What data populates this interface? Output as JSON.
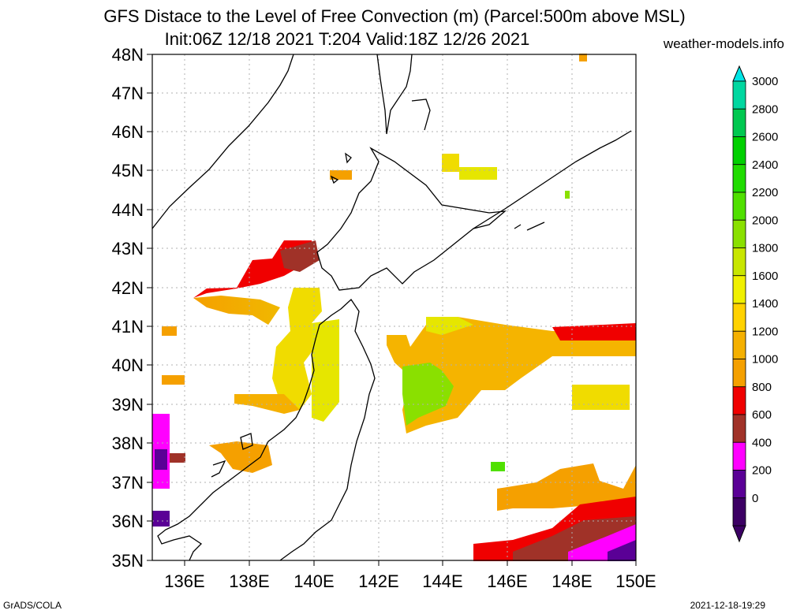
{
  "header": {
    "title_line1": "GFS Distace to the Level of Free Convection (m) (Parcel:500m above MSL)",
    "title_line2": "Init:06Z 12/18 2021 T:204 Valid:18Z 12/26 2021",
    "credit": "weather-models.info"
  },
  "footer": {
    "left": "GrADS/COLA",
    "right": "2021-12-18-19:29"
  },
  "map": {
    "lat_labels": [
      "48N",
      "47N",
      "46N",
      "45N",
      "44N",
      "43N",
      "42N",
      "41N",
      "40N",
      "39N",
      "38N",
      "37N",
      "36N",
      "35N"
    ],
    "lon_labels": [
      "136E",
      "138E",
      "140E",
      "142E",
      "144E",
      "146E",
      "148E",
      "150E"
    ],
    "lat_range": [
      35,
      48
    ],
    "lon_range": [
      135,
      150
    ],
    "grid": "dotted",
    "coastline_color": "#000000"
  },
  "colorbar": {
    "levels": [
      "3000",
      "2800",
      "2600",
      "2400",
      "2200",
      "2000",
      "1800",
      "1600",
      "1400",
      "1200",
      "1000",
      "800",
      "600",
      "400",
      "200",
      "0"
    ],
    "colors": [
      "#00e5e5",
      "#00d7a0",
      "#00c850",
      "#00d000",
      "#20dc00",
      "#50e000",
      "#8ae000",
      "#c8e600",
      "#f0f000",
      "#ffd200",
      "#f5b000",
      "#f5a000",
      "#f00000",
      "#a03228",
      "#ff00ff",
      "#5a0096",
      "#3c0064"
    ]
  }
}
